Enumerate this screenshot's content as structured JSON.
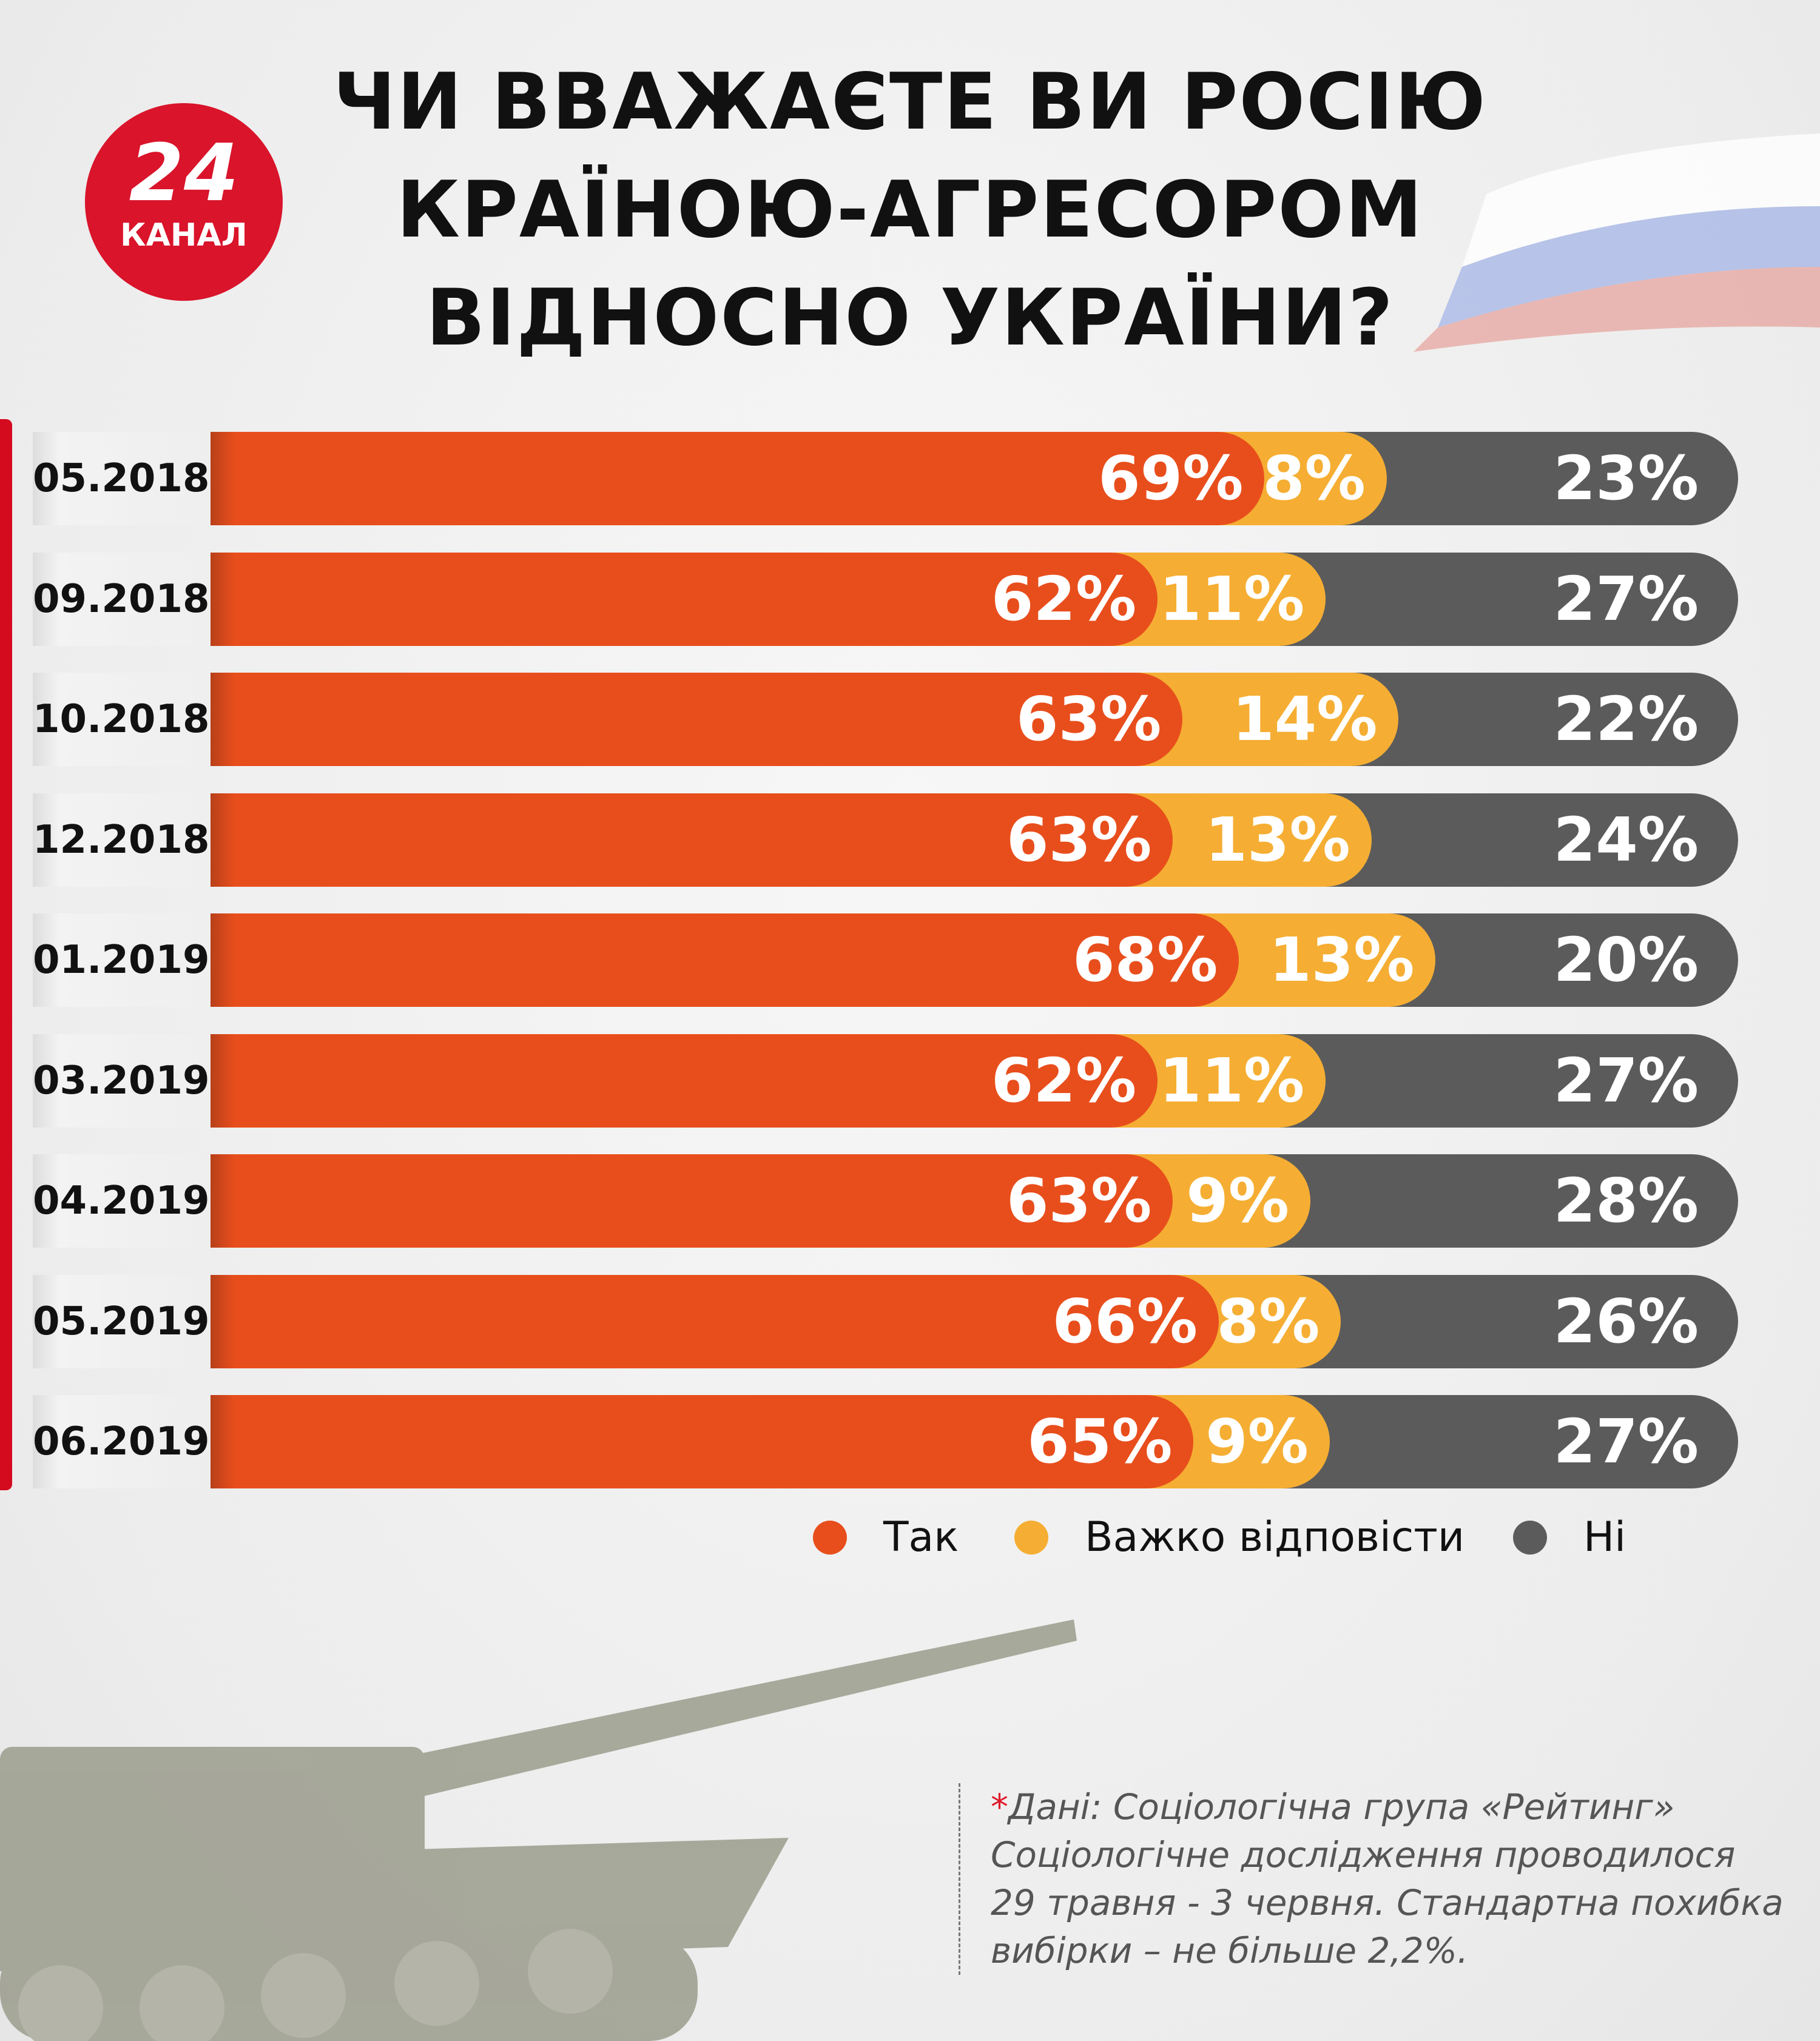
{
  "title_lines": [
    "ЧИ ВВАЖАЄТЕ ВИ РОСІЮ",
    "КРАЇНОЮ-АГРЕСОРОМ",
    "ВІДНОСНО УКРАЇНИ?"
  ],
  "logo": {
    "number": "24",
    "word": "КАНАЛ"
  },
  "colors": {
    "yes": "#e84e1c",
    "hard": "#f5ae33",
    "no": "#5b5b5b",
    "accent": "#d9142b"
  },
  "chart_data": {
    "type": "bar",
    "stacked": true,
    "orientation": "horizontal",
    "title": "ЧИ ВВАЖАЄТЕ ВИ РОСІЮ КРАЇНОЮ-АГРЕСОРОМ ВІДНОСНО УКРАЇНИ?",
    "categories": [
      "05.2018",
      "09.2018",
      "10.2018",
      "12.2018",
      "01.2019",
      "03.2019",
      "04.2019",
      "05.2019",
      "06.2019"
    ],
    "series": [
      {
        "name": "Так",
        "values": [
          69,
          62,
          63,
          63,
          68,
          62,
          63,
          66,
          65
        ]
      },
      {
        "name": "Важко відповісти",
        "values": [
          8,
          11,
          14,
          13,
          13,
          11,
          9,
          8,
          9
        ]
      },
      {
        "name": "Ні",
        "values": [
          23,
          27,
          22,
          24,
          20,
          27,
          28,
          26,
          27
        ]
      }
    ],
    "unit": "%",
    "legend": "bottom-right"
  },
  "footnote": {
    "star": "*",
    "lines": [
      "Дані:  Соціологічна група «Рейтинг»",
      "Соціологічне дослідження проводилося",
      "29 травня - 3 червня. Стандартна похибка",
      "вибірки – не більше 2,2%."
    ]
  }
}
